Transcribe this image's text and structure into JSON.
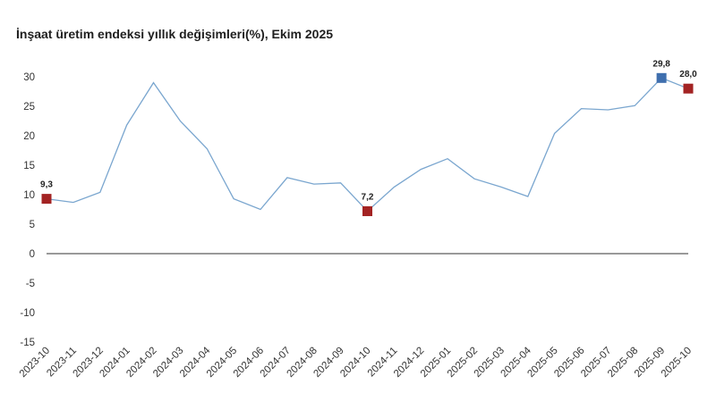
{
  "chart_data": {
    "type": "line",
    "title": "İnşaat üretim endeksi yıllık değişimleri(%), Ekim 2025",
    "xlabel": "",
    "ylabel": "",
    "ylim": [
      -15,
      30
    ],
    "yticks": [
      "-15",
      "-10",
      "-5",
      "0",
      "5",
      "10",
      "15",
      "20",
      "25",
      "30"
    ],
    "grid": false,
    "legend": "none",
    "categories": [
      "2023-10",
      "2023-11",
      "2023-12",
      "2024-01",
      "2024-02",
      "2024-03",
      "2024-04",
      "2024-05",
      "2024-06",
      "2024-07",
      "2024-08",
      "2024-09",
      "2024-10",
      "2024-11",
      "2024-12",
      "2025-01",
      "2025-02",
      "2025-03",
      "2025-04",
      "2025-05",
      "2025-06",
      "2025-07",
      "2025-08",
      "2025-09",
      "2025-10"
    ],
    "series": [
      {
        "values": [
          9.3,
          8.7,
          10.4,
          21.8,
          29.0,
          22.5,
          17.8,
          9.3,
          7.5,
          12.9,
          11.8,
          12.0,
          7.2,
          11.3,
          14.3,
          16.1,
          12.7,
          11.3,
          9.7,
          20.4,
          24.6,
          24.4,
          25.1,
          29.8,
          28.0
        ],
        "color": "#7aa6cf"
      }
    ],
    "highlights": [
      {
        "category": "2023-10",
        "value": 9.3,
        "label": "9,3",
        "color": "#a32323"
      },
      {
        "category": "2024-10",
        "value": 7.2,
        "label": "7,2",
        "color": "#a32323"
      },
      {
        "category": "2025-09",
        "value": 29.8,
        "label": "29,8",
        "color": "#3f6fae"
      },
      {
        "category": "2025-10",
        "value": 28.0,
        "label": "28,0",
        "color": "#a32323"
      }
    ],
    "axis_color": "#333333"
  }
}
